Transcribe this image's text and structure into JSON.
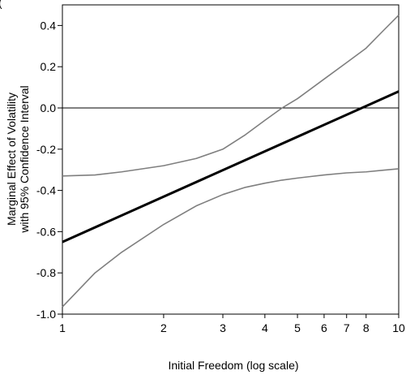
{
  "chart_data": {
    "type": "line",
    "title": "",
    "top_clipped_text": "(",
    "xlabel": "Initial Freedom (log scale)",
    "ylabel_line1": "Marginal Effect of Volatility",
    "ylabel_line2": "with 95% Confidence Interval",
    "x_scale": "log",
    "xlim": [
      1,
      10
    ],
    "ylim": [
      -1.0,
      0.5
    ],
    "x_ticks": [
      1,
      2,
      3,
      4,
      5,
      6,
      7,
      8,
      10
    ],
    "x_tick_labels": [
      "1",
      "2",
      "3",
      "4",
      "5",
      "6",
      "7",
      "8",
      "10"
    ],
    "y_ticks": [
      0.4,
      0.2,
      0.0,
      -0.2,
      -0.4,
      -0.6,
      -0.8,
      -1.0
    ],
    "y_tick_labels": [
      "0.4",
      "0.2",
      "0.0",
      "-0.2",
      "-0.4",
      "-0.6",
      "-0.8",
      "-1.0"
    ],
    "reference_line_y": 0.0,
    "grid": false,
    "legend": "none",
    "series": [
      {
        "role": "estimate",
        "color": "#000000",
        "x": [
          1,
          10
        ],
        "y": [
          -0.65,
          0.08
        ]
      },
      {
        "role": "upper-bound",
        "color": "#7f7f7f",
        "x": [
          1,
          1.25,
          1.5,
          2,
          2.5,
          3,
          3.5,
          4,
          4.5,
          5,
          6,
          7,
          8,
          9,
          10
        ],
        "y": [
          -0.33,
          -0.325,
          -0.31,
          -0.28,
          -0.245,
          -0.2,
          -0.13,
          -0.06,
          0.0,
          0.045,
          0.14,
          0.22,
          0.29,
          0.375,
          0.45
        ]
      },
      {
        "role": "lower-bound",
        "color": "#7f7f7f",
        "x": [
          1,
          1.25,
          1.5,
          2,
          2.5,
          3,
          3.5,
          4,
          4.5,
          5,
          6,
          7,
          8,
          9,
          10
        ],
        "y": [
          -0.965,
          -0.8,
          -0.7,
          -0.565,
          -0.475,
          -0.42,
          -0.385,
          -0.365,
          -0.35,
          -0.34,
          -0.325,
          -0.315,
          -0.31,
          -0.302,
          -0.295
        ]
      }
    ]
  }
}
